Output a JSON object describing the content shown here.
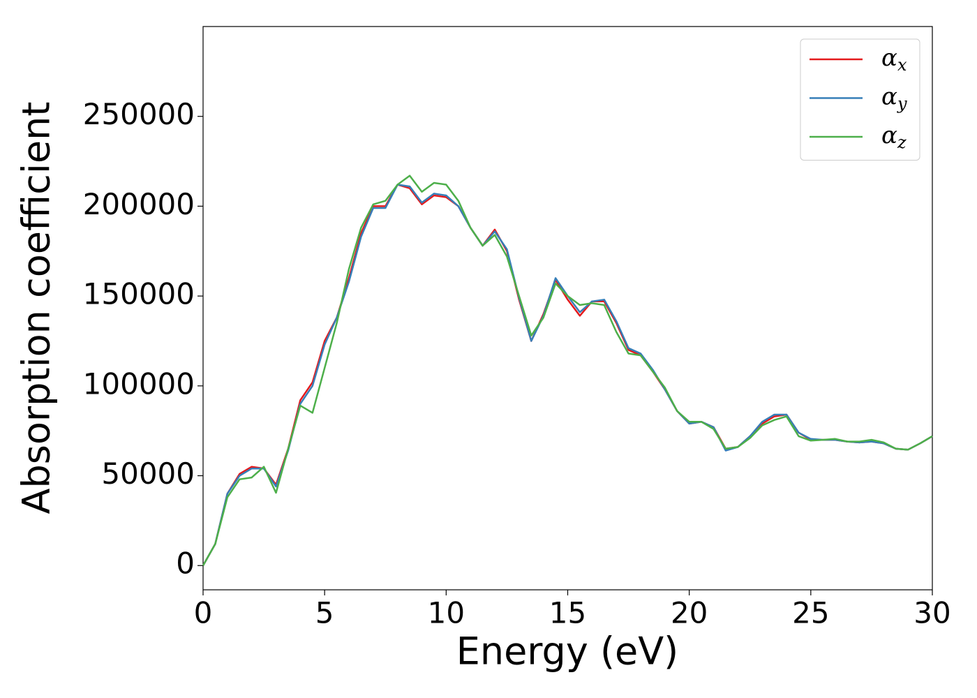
{
  "chart_data": {
    "type": "line",
    "x_label": "Energy (eV)",
    "y_label": "Absorption coefficient",
    "x": [
      0,
      0.5,
      1,
      1.5,
      2,
      2.5,
      3,
      3.5,
      4,
      4.5,
      5,
      5.5,
      6,
      6.5,
      7,
      7.5,
      8,
      8.5,
      9,
      9.5,
      10,
      10.5,
      11,
      11.5,
      12,
      12.5,
      13,
      13.5,
      14,
      14.5,
      15,
      15.5,
      16,
      16.5,
      17,
      17.5,
      18,
      18.5,
      19,
      19.5,
      20,
      20.5,
      21,
      21.5,
      22,
      22.5,
      23,
      23.5,
      24,
      24.5,
      25,
      25.5,
      26,
      26.5,
      27,
      27.5,
      28,
      28.5,
      29,
      29.5,
      30
    ],
    "series": [
      {
        "name": "αx",
        "color": "#e41a1c",
        "values": [
          0,
          12000,
          40000,
          51000,
          55000,
          54000,
          45000,
          65000,
          92000,
          102000,
          125000,
          138000,
          160000,
          185000,
          200000,
          200000,
          212000,
          210000,
          201000,
          206000,
          205000,
          200000,
          188000,
          178000,
          187000,
          175000,
          148000,
          125000,
          140000,
          159000,
          148000,
          139000,
          147000,
          147000,
          135000,
          120000,
          117000,
          108000,
          98000,
          86000,
          79000,
          80000,
          77000,
          65000,
          66000,
          72000,
          79000,
          83000,
          84000,
          74000,
          70000,
          70000,
          70000,
          69000,
          68500,
          69000,
          68000,
          65000,
          64500,
          68000,
          72000
        ]
      },
      {
        "name": "αy",
        "color": "#377eb8",
        "values": [
          0,
          12000,
          40000,
          50000,
          54000,
          54000,
          44000,
          64000,
          90000,
          100000,
          123000,
          138000,
          158000,
          183000,
          199000,
          199000,
          212000,
          211000,
          202000,
          207000,
          206000,
          200000,
          188000,
          178000,
          186000,
          176000,
          149000,
          125000,
          139000,
          160000,
          150000,
          141000,
          147000,
          148000,
          136000,
          121000,
          118000,
          109000,
          98000,
          86000,
          79000,
          80000,
          77000,
          64000,
          66000,
          72000,
          80000,
          84000,
          84000,
          74000,
          70500,
          70000,
          70000,
          69000,
          68500,
          69000,
          68000,
          65000,
          64500,
          68000,
          72000
        ]
      },
      {
        "name": "αz",
        "color": "#4daf4a",
        "values": [
          0,
          12000,
          38000,
          48000,
          49000,
          55000,
          40500,
          65000,
          89000,
          85000,
          110000,
          135000,
          165000,
          188000,
          201000,
          203000,
          212000,
          217000,
          208000,
          213000,
          212000,
          203000,
          188000,
          178000,
          184000,
          172000,
          150000,
          128000,
          138000,
          157000,
          150000,
          145000,
          146000,
          145000,
          130000,
          118000,
          117000,
          108000,
          99000,
          86000,
          80000,
          80000,
          76000,
          65000,
          66000,
          71000,
          78000,
          81000,
          83000,
          72000,
          69500,
          70000,
          70500,
          69000,
          69000,
          70000,
          68500,
          65000,
          64500,
          68000,
          72000
        ]
      }
    ],
    "xlim": [
      0,
      30
    ],
    "xticks": [
      0,
      5,
      10,
      15,
      20,
      25,
      30
    ],
    "ylim": [
      -13500,
      300000
    ],
    "yticks": [
      0,
      50000,
      100000,
      150000,
      200000,
      250000
    ],
    "legend": "upper right",
    "grid": false
  }
}
